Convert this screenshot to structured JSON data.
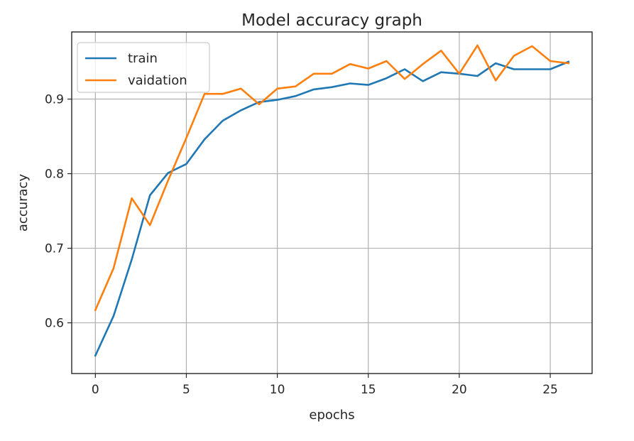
{
  "chart_data": {
    "type": "line",
    "title": "Model accuracy graph",
    "xlabel": "epochs",
    "ylabel": "accuracy",
    "xlim": [
      -1.3,
      27.3
    ],
    "ylim": [
      0.532,
      0.99
    ],
    "xticks": [
      0,
      5,
      10,
      15,
      20,
      25
    ],
    "yticks": [
      0.6,
      0.7,
      0.8,
      0.9
    ],
    "xtick_labels": [
      "0",
      "5",
      "10",
      "15",
      "20",
      "25"
    ],
    "ytick_labels": [
      "0.6",
      "0.7",
      "0.8",
      "0.9"
    ],
    "grid": true,
    "legend_position": "upper-left",
    "x": [
      0,
      1,
      2,
      3,
      4,
      5,
      6,
      7,
      8,
      9,
      10,
      11,
      12,
      13,
      14,
      15,
      16,
      17,
      18,
      19,
      20,
      21,
      22,
      23,
      24,
      25,
      26
    ],
    "series": [
      {
        "name": "train",
        "color": "#1f77b4",
        "values": [
          0.556,
          0.609,
          0.685,
          0.771,
          0.801,
          0.813,
          0.846,
          0.871,
          0.885,
          0.896,
          0.899,
          0.904,
          0.913,
          0.916,
          0.921,
          0.919,
          0.928,
          0.94,
          0.924,
          0.936,
          0.934,
          0.931,
          0.948,
          0.94,
          0.94,
          0.94,
          0.95
        ]
      },
      {
        "name": "vaidation",
        "color": "#ff7f0e",
        "values": [
          0.617,
          0.673,
          0.767,
          0.731,
          0.791,
          0.848,
          0.907,
          0.907,
          0.914,
          0.893,
          0.914,
          0.917,
          0.934,
          0.934,
          0.947,
          0.941,
          0.951,
          0.927,
          0.947,
          0.965,
          0.934,
          0.972,
          0.925,
          0.958,
          0.971,
          0.951,
          0.948
        ]
      }
    ]
  }
}
